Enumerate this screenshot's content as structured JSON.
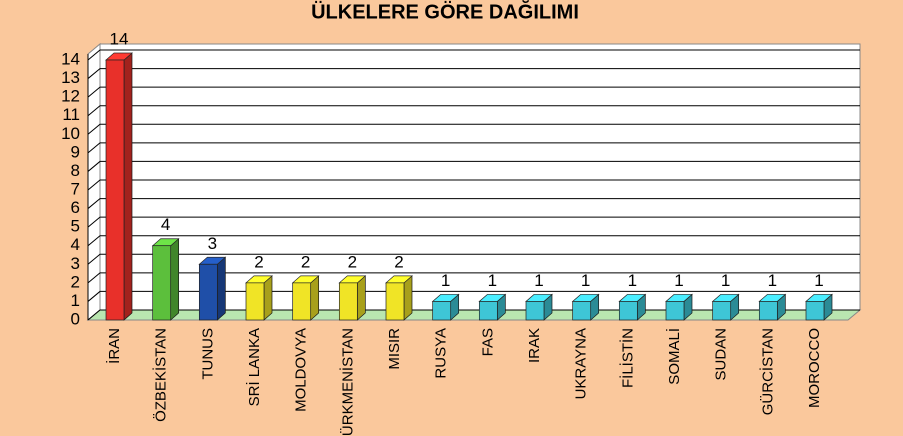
{
  "chart_data": {
    "type": "bar3d",
    "title": "ÜLKELERE GÖRE DAĞILIMI",
    "categories": [
      "İRAN",
      "ÖZBEKİSTAN",
      "TUNUS",
      "SRİ LANKA",
      "MOLDOVYA",
      "TÜRKMENİSTAN",
      "MISIR",
      "RUSYA",
      "FAS",
      "IRAK",
      "UKRAYNA",
      "FİLİSTİN",
      "SOMALİ",
      "SUDAN",
      "GÜRCİSTAN",
      "MOROCCO"
    ],
    "values": [
      14,
      4,
      3,
      2,
      2,
      2,
      2,
      1,
      1,
      1,
      1,
      1,
      1,
      1,
      1,
      1
    ],
    "colors": [
      "#e8302a",
      "#5cbf3c",
      "#1f4fa8",
      "#f0e426",
      "#f0e426",
      "#f0e426",
      "#f0e426",
      "#3ec6d6",
      "#3ec6d6",
      "#3ec6d6",
      "#3ec6d6",
      "#3ec6d6",
      "#3ec6d6",
      "#3ec6d6",
      "#3ec6d6",
      "#3ec6d6"
    ],
    "ylim": [
      0,
      14
    ],
    "yticks": [
      0,
      1,
      2,
      3,
      4,
      5,
      6,
      7,
      8,
      9,
      10,
      11,
      12,
      13,
      14
    ],
    "grid": true
  }
}
